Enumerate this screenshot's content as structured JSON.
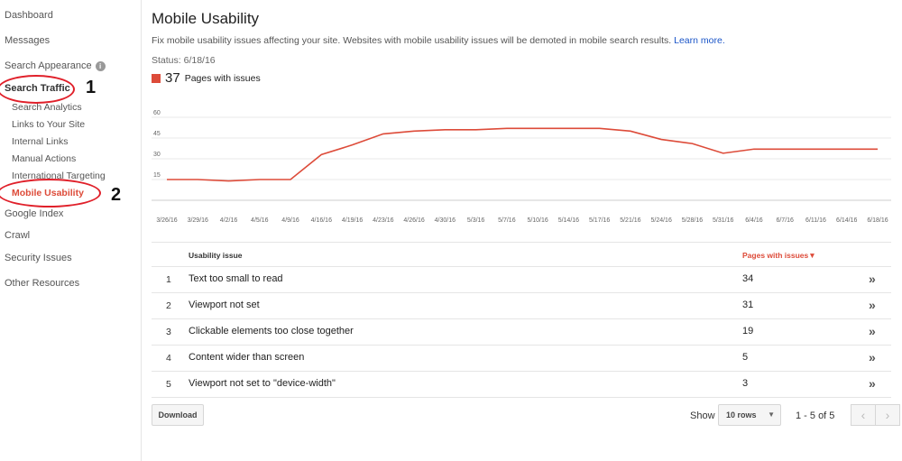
{
  "sidebar": {
    "items": [
      {
        "label": "Dashboard"
      },
      {
        "label": "Messages"
      },
      {
        "label": "Search Appearance"
      },
      {
        "label": "Search Traffic"
      },
      {
        "label": "Google Index"
      },
      {
        "label": "Crawl"
      },
      {
        "label": "Security Issues"
      },
      {
        "label": "Other Resources"
      }
    ],
    "sub_items": [
      {
        "label": "Search Analytics"
      },
      {
        "label": "Links to Your Site"
      },
      {
        "label": "Internal Links"
      },
      {
        "label": "Manual Actions"
      },
      {
        "label": "International Targeting"
      },
      {
        "label": "Mobile Usability"
      }
    ],
    "info_icon": "i",
    "annotations": [
      "1",
      "2"
    ]
  },
  "main": {
    "title": "Mobile Usability",
    "description": "Fix mobile usability issues affecting your site. Websites with mobile usability issues will be demoted in mobile search results.",
    "learn_more": "Learn more.",
    "status": "Status: 6/18/16",
    "legend_count": "37",
    "legend_label": "Pages with issues",
    "accent_color": "#dd4b39"
  },
  "chart_data": {
    "type": "line",
    "x": [
      "3/26/16",
      "3/29/16",
      "4/2/16",
      "4/5/16",
      "4/9/16",
      "4/16/16",
      "4/19/16",
      "4/23/16",
      "4/26/16",
      "4/30/16",
      "5/3/16",
      "5/7/16",
      "5/10/16",
      "5/14/16",
      "5/17/16",
      "5/21/16",
      "5/24/16",
      "5/28/16",
      "5/31/16",
      "6/4/16",
      "6/7/16",
      "6/11/16",
      "6/14/16",
      "6/18/16"
    ],
    "series": [
      {
        "values": [
          15,
          15,
          14,
          15,
          15,
          33,
          40,
          48,
          50,
          51,
          51,
          52,
          52,
          52,
          52,
          50,
          44,
          41,
          34,
          37,
          37,
          37,
          37,
          37
        ]
      }
    ],
    "ylim": [
      0,
      60
    ],
    "yticks": [
      "15",
      "30",
      "45",
      "60"
    ],
    "grid": true,
    "color": "#dd4b39"
  },
  "table": {
    "headers": {
      "issue": "Usability issue",
      "pages": "Pages with issues▼"
    },
    "rows": [
      {
        "num": "1",
        "issue": "Text too small to read",
        "pages": "34"
      },
      {
        "num": "2",
        "issue": "Viewport not set",
        "pages": "31"
      },
      {
        "num": "3",
        "issue": "Clickable elements too close together",
        "pages": "19"
      },
      {
        "num": "4",
        "issue": "Content wider than screen",
        "pages": "5"
      },
      {
        "num": "5",
        "issue": "Viewport not set to \"device-width\"",
        "pages": "3"
      }
    ],
    "row_arrow": "»"
  },
  "footer": {
    "download_label": "Download",
    "show_label": "Show",
    "rows_value": "10 rows",
    "range": "1 - 5 of 5",
    "prev_icon": "‹",
    "next_icon": "›"
  }
}
